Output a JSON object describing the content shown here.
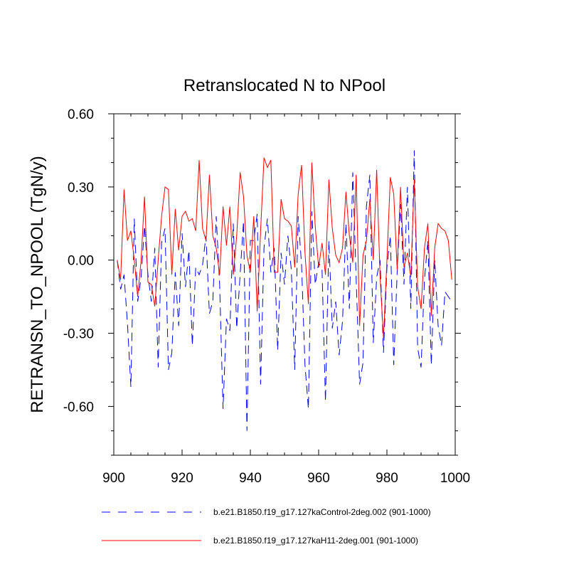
{
  "chart_data": {
    "type": "line",
    "title": "Retranslocated N to NPool",
    "xlabel": "",
    "ylabel": "RETRANSN_TO_NPOOL  (TgN/y)",
    "xlim": [
      900,
      1000
    ],
    "ylim": [
      -0.8,
      0.6
    ],
    "xticks": [
      900,
      920,
      940,
      960,
      980,
      1000
    ],
    "xtick_labels": [
      "900",
      "920",
      "940",
      "960",
      "980",
      "1000"
    ],
    "yticks": [
      0.6,
      0.3,
      0.0,
      -0.3,
      -0.6
    ],
    "ytick_labels": [
      "0.60",
      "0.30",
      "0.00",
      "-0.30",
      "-0.60"
    ],
    "grid": false,
    "legend_position": "bottom",
    "series": [
      {
        "name": "b.e21.B1850.f19_g17.127kaControl-2deg.002 (901-1000)",
        "color": "#0000ff",
        "dash": "dashed",
        "x_start": 901,
        "x_step": 1,
        "values": [
          0.0,
          -0.12,
          -0.06,
          -0.26,
          -0.52,
          0.17,
          -0.17,
          -0.07,
          0.14,
          -0.06,
          -0.17,
          0.05,
          -0.44,
          0.07,
          0.13,
          -0.45,
          -0.38,
          -0.05,
          -0.27,
          0.11,
          -0.11,
          0.04,
          -0.35,
          -0.03,
          -0.06,
          -0.02,
          0.1,
          -0.22,
          -0.17,
          0.18,
          -0.1,
          -0.61,
          -0.24,
          -0.29,
          0.15,
          -0.28,
          -0.06,
          0.16,
          -0.7,
          0.08,
          0.08,
          0.19,
          -0.51,
          0.05,
          0.17,
          -0.05,
          0.05,
          -0.37,
          0.03,
          -0.1,
          0.1,
          -0.04,
          -0.45,
          0.18,
          -0.02,
          -0.43,
          -0.61,
          0.2,
          -0.1,
          -0.01,
          -0.04,
          -0.58,
          0.08,
          -0.28,
          -0.17,
          -0.39,
          -0.25,
          0.15,
          -0.2,
          0.36,
          -0.08,
          -0.51,
          -0.42,
          0.22,
          0.35,
          -0.34,
          -0.07,
          0.0,
          -0.38,
          -0.03,
          0.1,
          -0.43,
          -0.05,
          0.23,
          -0.1,
          0.3,
          -0.2,
          0.45,
          -0.36,
          -0.44,
          -0.08,
          0.08,
          -0.43,
          0.0,
          -0.27,
          -0.35,
          -0.13,
          -0.15,
          -0.17
        ]
      },
      {
        "name": "b.e21.B1850.f19_g17.127kaH11-2deg.001 (901-1000)",
        "color": "#ff0000",
        "dash": "solid",
        "x_start": 901,
        "x_step": 1,
        "values": [
          0.0,
          -0.08,
          0.29,
          0.08,
          0.12,
          0.0,
          -0.15,
          0.0,
          0.26,
          -0.09,
          -0.1,
          -0.19,
          0.0,
          0.18,
          0.3,
          0.29,
          -0.06,
          0.21,
          0.04,
          0.18,
          0.2,
          0.16,
          0.17,
          0.12,
          0.41,
          0.13,
          0.08,
          0.35,
          0.1,
          0.05,
          -0.06,
          0.22,
          0.06,
          0.22,
          -0.06,
          0.1,
          0.36,
          0.26,
          0.02,
          -0.05,
          0.18,
          -0.21,
          0.12,
          0.42,
          0.38,
          0.41,
          -0.05,
          -0.05,
          0.25,
          0.17,
          0.16,
          0.14,
          -0.03,
          0.27,
          0.39,
          0.03,
          -0.18,
          0.4,
          0.14,
          -0.03,
          0.07,
          -0.06,
          0.33,
          0.13,
          0.02,
          -0.01,
          0.05,
          0.28,
          0.1,
          -0.01,
          0.35,
          -0.27,
          0.02,
          0.08,
          0.25,
          0.0,
          0.37,
          -0.07,
          -0.32,
          0.0,
          0.34,
          0.27,
          -0.04,
          0.3,
          -0.03,
          0.03,
          -0.07,
          0.33,
          -0.11,
          -0.2,
          0.05,
          0.15,
          -0.23,
          0.05,
          0.15,
          0.13,
          0.12,
          0.08,
          -0.08
        ]
      }
    ]
  }
}
